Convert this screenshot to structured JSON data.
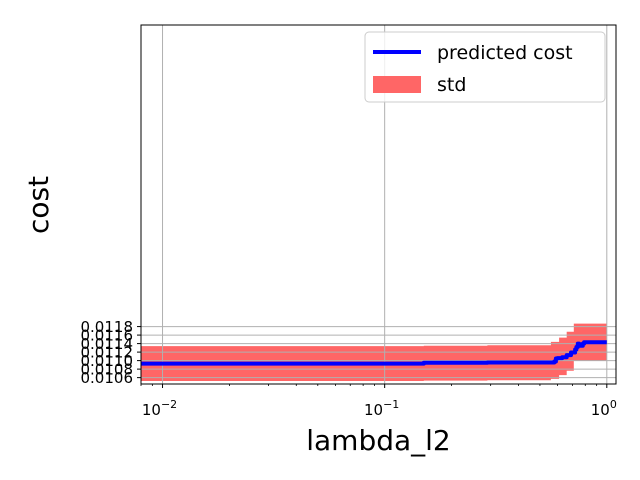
{
  "chart_data": {
    "type": "line",
    "title": "",
    "xlabel": "lambda_l2",
    "ylabel": "cost",
    "xscale": "log",
    "xlim": [
      0.008,
      1.1
    ],
    "ylim": [
      0.01045,
      0.01889
    ],
    "grid": true,
    "legend": {
      "position": "top-right",
      "entries": [
        "predicted cost",
        "std"
      ]
    },
    "colors": {
      "line": "#0000ff",
      "band": "#ff6666"
    },
    "xticks": [
      {
        "value": 0.01,
        "base": "10",
        "exp": "−2"
      },
      {
        "value": 0.1,
        "base": "10",
        "exp": "−1"
      },
      {
        "value": 1,
        "base": "10",
        "exp": "0"
      }
    ],
    "yticks": [
      {
        "value": 0.0106,
        "label": "0.0106"
      },
      {
        "value": 0.0108,
        "label": "0.0108"
      },
      {
        "value": 0.011,
        "label": "0.0110"
      },
      {
        "value": 0.0112,
        "label": "0.0112"
      },
      {
        "value": 0.0114,
        "label": "0.0114"
      },
      {
        "value": 0.0116,
        "label": "0.0116"
      },
      {
        "value": 0.0118,
        "label": "0.0118"
      }
    ],
    "series": [
      {
        "name": "predicted cost",
        "x": [
          0.008,
          0.14,
          0.15,
          0.28,
          0.29,
          0.57,
          0.58,
          0.59,
          0.6,
          0.62,
          0.63,
          0.65,
          0.66,
          0.68,
          0.69,
          0.71,
          0.72,
          0.73,
          0.74,
          0.75,
          0.76,
          0.78,
          0.79,
          1.0
        ],
        "y": [
          0.01093,
          0.01093,
          0.01095,
          0.01095,
          0.010955,
          0.010955,
          0.01098,
          0.01105,
          0.01106,
          0.01106,
          0.01108,
          0.01108,
          0.01113,
          0.01113,
          0.01119,
          0.01119,
          0.01126,
          0.01132,
          0.0114,
          0.01135,
          0.01135,
          0.0114,
          0.01143,
          0.01143
        ]
      },
      {
        "name": "std",
        "x": [
          0.008,
          0.14,
          0.15,
          0.28,
          0.29,
          0.55,
          0.56,
          0.6,
          0.61,
          0.65,
          0.66,
          0.7,
          0.71,
          1.0
        ],
        "upper": [
          0.01134,
          0.01134,
          0.01135,
          0.01135,
          0.01136,
          0.01136,
          0.01144,
          0.01144,
          0.01154,
          0.01154,
          0.01168,
          0.01168,
          0.01187,
          0.01187
        ],
        "lower": [
          0.01052,
          0.01052,
          0.01053,
          0.01053,
          0.01054,
          0.01054,
          0.01057,
          0.01057,
          0.01066,
          0.01066,
          0.01076,
          0.01076,
          0.011,
          0.011
        ]
      }
    ]
  }
}
